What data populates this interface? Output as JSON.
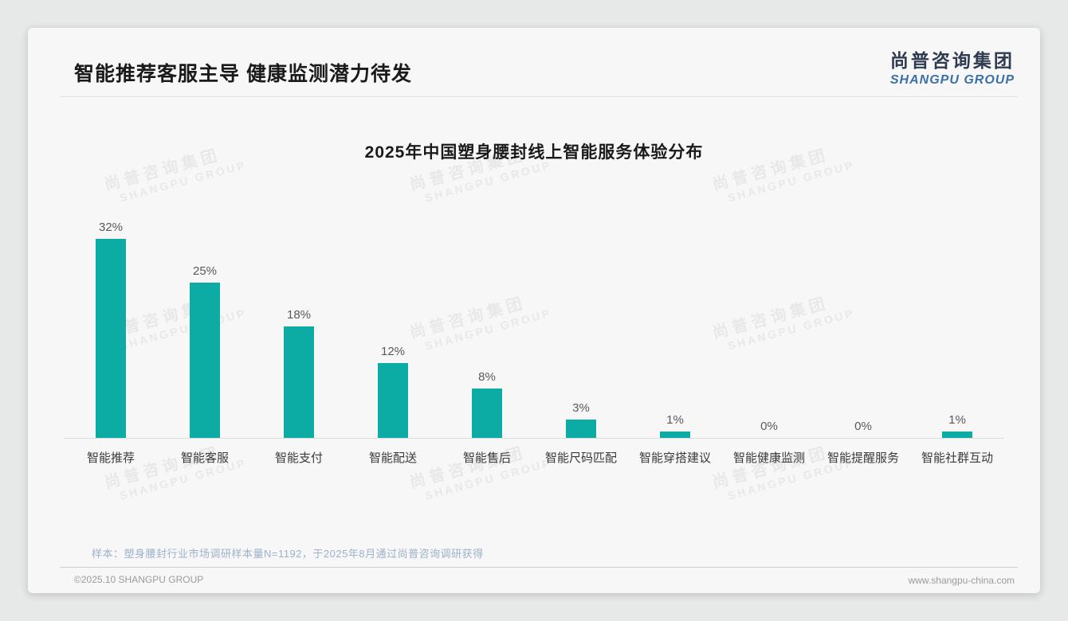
{
  "page": {
    "title": "智能推荐客服主导 健康监测潜力待发",
    "note": "样本：塑身腰封行业市场调研样本量N=1192，于2025年8月通过尚普咨询调研获得",
    "footer_left": "©2025.10 SHANGPU GROUP",
    "footer_right": "www.shangpu-china.com"
  },
  "logo": {
    "text_cn": "尚普咨询集团",
    "text_en": "SHANGPU GROUP"
  },
  "watermark": {
    "text_cn": "尚普咨询集团",
    "text_en": "SHANGPU GROUP"
  },
  "colors": {
    "bar": "#0caca4",
    "logo_navy": "#2f3b4f",
    "logo_blue": "#3a6fa7"
  },
  "chart_data": {
    "type": "bar",
    "title": "2025年中国塑身腰封线上智能服务体验分布",
    "categories": [
      "智能推荐",
      "智能客服",
      "智能支付",
      "智能配送",
      "智能售后",
      "智能尺码匹配",
      "智能穿搭建议",
      "智能健康监测",
      "智能提醒服务",
      "智能社群互动"
    ],
    "values": [
      32,
      25,
      18,
      12,
      8,
      3,
      1,
      0,
      0,
      1
    ],
    "value_labels": [
      "32%",
      "25%",
      "18%",
      "12%",
      "8%",
      "3%",
      "1%",
      "0%",
      "0%",
      "1%"
    ],
    "unit": "%",
    "xlabel": "",
    "ylabel": "",
    "ylim": [
      0,
      35
    ],
    "grid": false,
    "legend": false,
    "bar_color": "#0caca4"
  }
}
